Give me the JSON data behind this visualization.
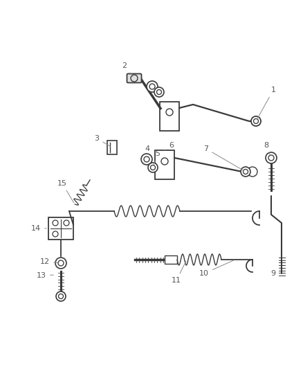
{
  "background_color": "#ffffff",
  "line_color": "#3a3a3a",
  "label_color": "#555555",
  "figsize": [
    4.38,
    5.33
  ],
  "dpi": 100
}
